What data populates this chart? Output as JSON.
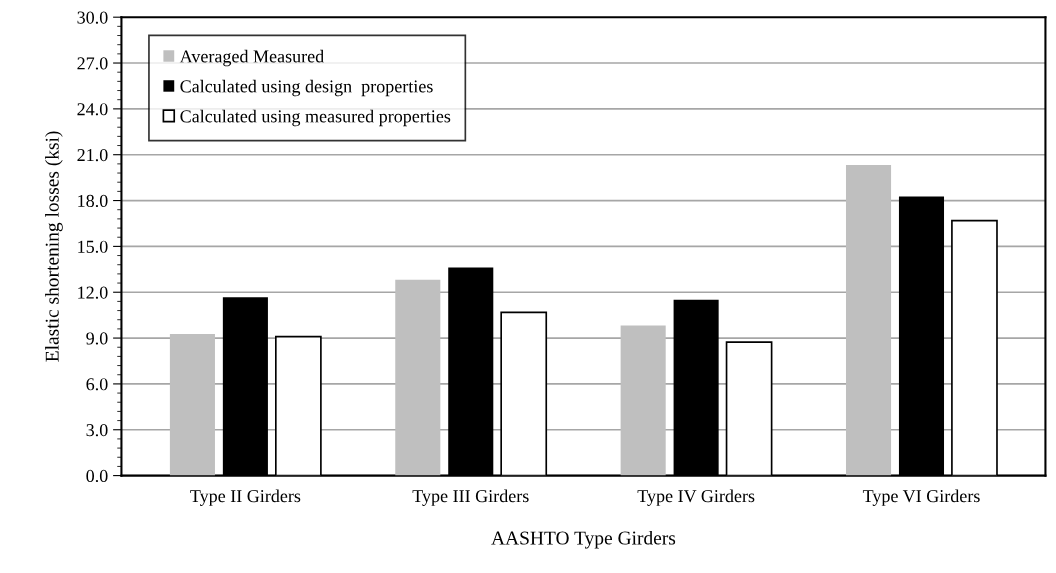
{
  "chart_data": {
    "type": "bar",
    "xlabel": "AASHTO Type Girders",
    "ylabel": "Elastic shortening losses (ksi)",
    "categories": [
      "Type II Girders",
      "Type III Girders",
      "Type IV Girders",
      "Type VI Girders"
    ],
    "series": [
      {
        "name": "Averaged Measured",
        "color": "#bfbfbf",
        "values": [
          9.27,
          12.81,
          9.82,
          20.33
        ]
      },
      {
        "name": "Calculated using design  properties",
        "color": "#000000",
        "values": [
          11.67,
          13.62,
          11.51,
          18.27
        ]
      },
      {
        "name": "Calculated using measured properties",
        "color": "#ffffff",
        "values": [
          9.1,
          10.68,
          8.73,
          16.69
        ]
      }
    ],
    "ylim": [
      0,
      30
    ],
    "yticks": [
      {
        "value": 0,
        "label": "0.0"
      },
      {
        "value": 3,
        "label": "3.0"
      },
      {
        "value": 6,
        "label": "6.0"
      },
      {
        "value": 9,
        "label": "9.0"
      },
      {
        "value": 12,
        "label": "12.0"
      },
      {
        "value": 15,
        "label": "15.0"
      },
      {
        "value": 18,
        "label": "18.0"
      },
      {
        "value": 21,
        "label": "21.0"
      },
      {
        "value": 24,
        "label": "24.0"
      },
      {
        "value": 27,
        "label": "27.0"
      },
      {
        "value": 30,
        "label": "30.0"
      }
    ],
    "grid": "y",
    "legend": "top left"
  }
}
